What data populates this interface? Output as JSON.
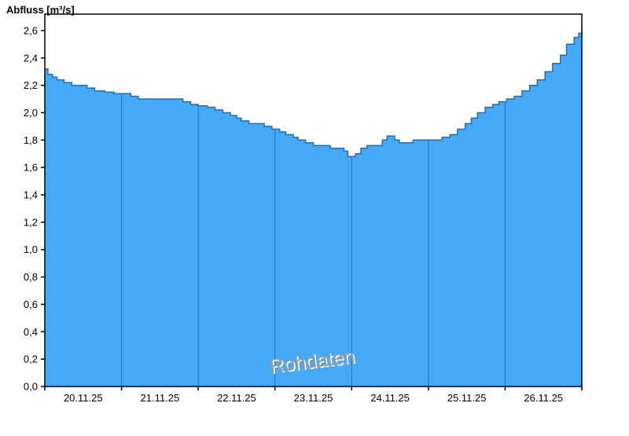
{
  "title": "Abfluss [m³/s]",
  "watermark": "Rohdaten",
  "chart_data": {
    "type": "area",
    "title": "Abfluss [m³/s]",
    "ylabel": "Abfluss [m³/s]",
    "xlabel": "",
    "ylim": [
      0,
      2.72
    ],
    "ytick_step": 0.2,
    "ytick_max": 2.6,
    "decimal_separator": ",",
    "grid": "vertical-day-boundaries",
    "categories": [
      "20.11.25",
      "21.11.25",
      "22.11.25",
      "23.11.25",
      "24.11.25",
      "25.11.25",
      "26.11.25"
    ],
    "x_range_days": [
      0,
      7
    ],
    "series_name": "Rohdaten",
    "points": [
      [
        0.0,
        2.32
      ],
      [
        0.04,
        2.28
      ],
      [
        0.1,
        2.26
      ],
      [
        0.16,
        2.24
      ],
      [
        0.25,
        2.22
      ],
      [
        0.35,
        2.2
      ],
      [
        0.55,
        2.18
      ],
      [
        0.65,
        2.16
      ],
      [
        0.78,
        2.15
      ],
      [
        0.9,
        2.14
      ],
      [
        1.12,
        2.12
      ],
      [
        1.22,
        2.1
      ],
      [
        1.55,
        2.1
      ],
      [
        1.8,
        2.08
      ],
      [
        1.9,
        2.06
      ],
      [
        2.0,
        2.05
      ],
      [
        2.12,
        2.04
      ],
      [
        2.22,
        2.02
      ],
      [
        2.32,
        2.0
      ],
      [
        2.42,
        1.98
      ],
      [
        2.5,
        1.96
      ],
      [
        2.56,
        1.94
      ],
      [
        2.66,
        1.92
      ],
      [
        2.78,
        1.92
      ],
      [
        2.86,
        1.9
      ],
      [
        2.96,
        1.88
      ],
      [
        3.06,
        1.86
      ],
      [
        3.14,
        1.84
      ],
      [
        3.24,
        1.82
      ],
      [
        3.3,
        1.8
      ],
      [
        3.4,
        1.78
      ],
      [
        3.5,
        1.76
      ],
      [
        3.62,
        1.76
      ],
      [
        3.72,
        1.74
      ],
      [
        3.84,
        1.74
      ],
      [
        3.9,
        1.72
      ],
      [
        3.95,
        1.68
      ],
      [
        4.05,
        1.7
      ],
      [
        4.12,
        1.74
      ],
      [
        4.2,
        1.76
      ],
      [
        4.32,
        1.76
      ],
      [
        4.4,
        1.8
      ],
      [
        4.46,
        1.83
      ],
      [
        4.56,
        1.8
      ],
      [
        4.62,
        1.78
      ],
      [
        4.72,
        1.78
      ],
      [
        4.8,
        1.8
      ],
      [
        5.05,
        1.8
      ],
      [
        5.18,
        1.82
      ],
      [
        5.28,
        1.84
      ],
      [
        5.38,
        1.88
      ],
      [
        5.48,
        1.92
      ],
      [
        5.56,
        1.96
      ],
      [
        5.64,
        2.0
      ],
      [
        5.74,
        2.04
      ],
      [
        5.84,
        2.06
      ],
      [
        5.92,
        2.08
      ],
      [
        6.02,
        2.1
      ],
      [
        6.12,
        2.12
      ],
      [
        6.22,
        2.16
      ],
      [
        6.32,
        2.2
      ],
      [
        6.42,
        2.24
      ],
      [
        6.52,
        2.3
      ],
      [
        6.62,
        2.36
      ],
      [
        6.72,
        2.42
      ],
      [
        6.8,
        2.5
      ],
      [
        6.9,
        2.55
      ],
      [
        6.96,
        2.58
      ],
      [
        7.0,
        2.6
      ]
    ],
    "colors": {
      "area_fill": "#46a9f5",
      "area_stroke": "#1a6fc4",
      "gridline": "#2277cc",
      "frame": "#000000",
      "tick_label": "#000000",
      "watermark_fill": "#9a9a9a",
      "watermark_highlight": "#ffffff"
    }
  }
}
